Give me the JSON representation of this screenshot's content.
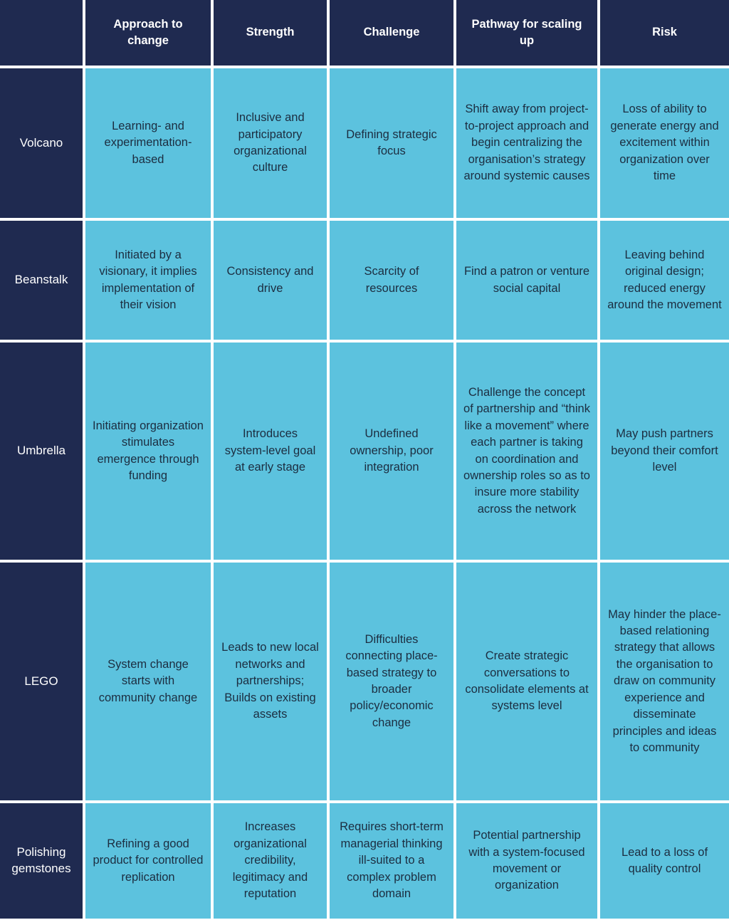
{
  "colors": {
    "navy": "#1f2a50",
    "light_blue": "#5cc2de",
    "border": "#ffffff",
    "header_text": "#ffffff",
    "body_text": "#1c2d40"
  },
  "chart_data": {
    "type": "table",
    "columns": [
      "",
      "Approach to change",
      "Strength",
      "Challenge",
      "Pathway for scaling up",
      "Risk"
    ],
    "row_labels": [
      "Volcano",
      "Beanstalk",
      "Umbrella",
      "LEGO",
      "Polishing gemstones"
    ],
    "rows": [
      [
        "Learning- and experimentation-based",
        "Inclusive and participatory organizational culture",
        "Defining strategic focus",
        "Shift away from project-to-project approach and begin centralizing the organisation’s strategy around systemic causes",
        "Loss of ability to generate energy and excitement within organization over time"
      ],
      [
        "Initiated by a visionary, it implies implementation of their vision",
        "Consistency and drive",
        "Scarcity of resources",
        "Find a patron or venture social capital",
        "Leaving behind original design; reduced energy around the movement"
      ],
      [
        "Initiating organization stimulates emergence through funding",
        "Introduces system-level goal at early stage",
        "Undefined ownership, poor integration",
        "Challenge the concept of partnership and “think like a movement” where each partner is taking on coordination and ownership roles so as to insure more stability across the network",
        "May push partners beyond their comfort level"
      ],
      [
        "System change starts with community change",
        "Leads to new local networks and partnerships; Builds on existing assets",
        "Difficulties connecting place-based strategy to broader policy/economic change",
        "Create strategic conversations to consolidate elements at systems level",
        "May hinder the place-based relationing strategy that allows the organisation to draw on community experience and disseminate principles and ideas to community"
      ],
      [
        "Refining a good product for controlled replication",
        "Increases organizational credibility, legitimacy and reputation",
        "Requires short-term managerial thinking ill-suited to a complex problem domain",
        "Potential partnership with a system-focused movement or organization",
        "Lead to a loss of quality control"
      ]
    ]
  }
}
